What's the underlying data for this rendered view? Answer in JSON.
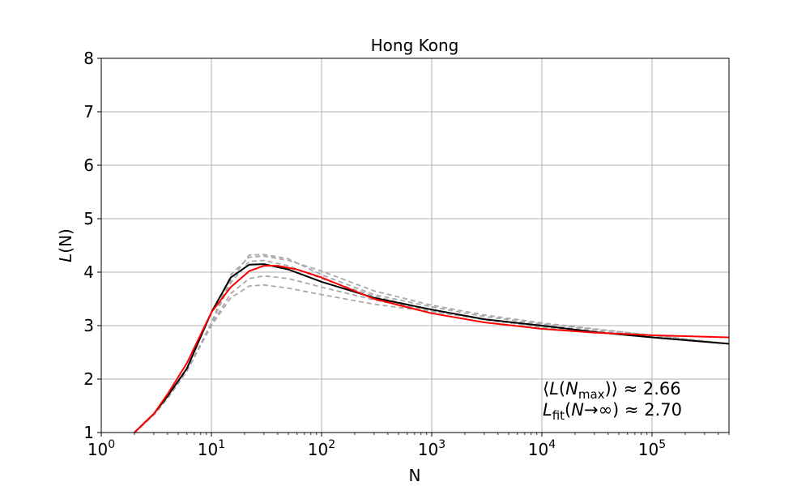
{
  "chart_data": {
    "type": "line",
    "title": "Hong Kong",
    "xlabel": "N",
    "ylabel_italic": "L",
    "ylabel_paren": "(N)",
    "xscale": "log",
    "xlim": [
      1,
      500000
    ],
    "ylim": [
      1,
      8
    ],
    "grid": true,
    "xticks": [
      {
        "value": 1,
        "base": "10",
        "exp": "0"
      },
      {
        "value": 10,
        "base": "10",
        "exp": "1"
      },
      {
        "value": 100,
        "base": "10",
        "exp": "2"
      },
      {
        "value": 1000,
        "base": "10",
        "exp": "3"
      },
      {
        "value": 10000,
        "base": "10",
        "exp": "4"
      },
      {
        "value": 100000,
        "base": "10",
        "exp": "5"
      }
    ],
    "yticks": [
      1,
      2,
      3,
      4,
      5,
      6,
      7,
      8
    ],
    "series": [
      {
        "style": "dashed",
        "color": "#a9a9a9",
        "x": [
          2,
          3,
          4,
          6,
          10,
          15,
          22,
          30,
          50,
          100,
          300,
          1000,
          3000,
          10000,
          30000,
          100000,
          500000
        ],
        "y": [
          1.0,
          1.33,
          1.64,
          2.15,
          3.05,
          3.85,
          4.32,
          4.33,
          4.25,
          3.95,
          3.58,
          3.35,
          3.17,
          3.03,
          2.93,
          2.82,
          2.66
        ]
      },
      {
        "style": "dashed",
        "color": "#a9a9a9",
        "x": [
          2,
          3,
          4,
          6,
          10,
          15,
          22,
          30,
          50,
          100,
          300,
          1000,
          3000,
          10000,
          30000,
          100000,
          500000
        ],
        "y": [
          1.0,
          1.33,
          1.64,
          2.15,
          3.05,
          3.95,
          4.28,
          4.3,
          4.22,
          4.02,
          3.65,
          3.38,
          3.2,
          3.05,
          2.94,
          2.82,
          2.66
        ]
      },
      {
        "style": "dashed",
        "color": "#a9a9a9",
        "x": [
          2,
          3,
          4,
          6,
          10,
          15,
          22,
          30,
          50,
          100,
          300,
          1000,
          3000,
          10000,
          30000,
          100000,
          500000
        ],
        "y": [
          1.0,
          1.33,
          1.64,
          2.15,
          3.05,
          3.8,
          4.2,
          4.22,
          4.12,
          3.88,
          3.55,
          3.28,
          3.11,
          2.97,
          2.88,
          2.78,
          2.66
        ]
      },
      {
        "style": "dashed",
        "color": "#a9a9a9",
        "x": [
          2,
          3,
          4,
          6,
          10,
          15,
          22,
          30,
          50,
          100,
          300,
          1000,
          3000,
          10000,
          30000,
          100000,
          500000
        ],
        "y": [
          1.0,
          1.33,
          1.64,
          2.15,
          3.02,
          3.6,
          3.88,
          3.93,
          3.88,
          3.72,
          3.48,
          3.28,
          3.12,
          2.99,
          2.89,
          2.8,
          2.66
        ]
      },
      {
        "style": "dashed",
        "color": "#a9a9a9",
        "x": [
          2,
          3,
          4,
          6,
          10,
          15,
          22,
          30,
          50,
          100,
          300,
          1000,
          3000,
          10000,
          30000,
          100000,
          500000
        ],
        "y": [
          1.0,
          1.33,
          1.64,
          2.15,
          3.0,
          3.52,
          3.74,
          3.76,
          3.7,
          3.58,
          3.4,
          3.26,
          3.12,
          3.0,
          2.9,
          2.8,
          2.66
        ]
      },
      {
        "style": "solid",
        "color": "#000000",
        "x": [
          2,
          3,
          4,
          6,
          10,
          15,
          22,
          30,
          50,
          100,
          300,
          1000,
          3000,
          10000,
          30000,
          100000,
          500000
        ],
        "y": [
          1.0,
          1.35,
          1.68,
          2.2,
          3.25,
          3.9,
          4.14,
          4.15,
          4.05,
          3.82,
          3.52,
          3.3,
          3.12,
          3.0,
          2.88,
          2.78,
          2.66
        ]
      },
      {
        "style": "solid",
        "color": "#ff0000",
        "x": [
          2,
          3,
          4,
          6,
          10,
          15,
          22,
          30,
          40,
          60,
          100,
          300,
          1000,
          3000,
          10000,
          30000,
          100000,
          500000
        ],
        "y": [
          1.0,
          1.35,
          1.72,
          2.3,
          3.25,
          3.72,
          4.02,
          4.12,
          4.12,
          4.05,
          3.9,
          3.5,
          3.23,
          3.06,
          2.94,
          2.87,
          2.82,
          2.78
        ]
      }
    ],
    "annotations": {
      "line1_prefix": "⟨",
      "line1_L": "L",
      "line1_open": "(",
      "line1_N": "N",
      "line1_sub": "max",
      "line1_suffix": ")⟩ ≈ 2.66",
      "line2_L": "L",
      "line2_sub": "fit",
      "line2_open": "(",
      "line2_N": "N",
      "line2_suffix": "→∞) ≈ 2.70"
    }
  }
}
